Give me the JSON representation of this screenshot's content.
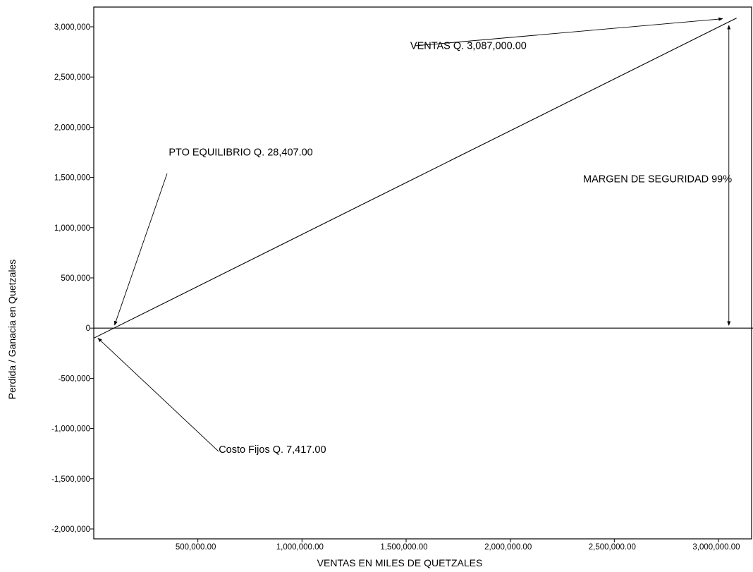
{
  "chart_data": {
    "type": "line",
    "title": "",
    "xlabel": "VENTAS EN MILES DE QUETZALES",
    "ylabel": "Perdida / Ganacia en Quetzales",
    "xlim": [
      0,
      3200000
    ],
    "ylim": [
      -2000000,
      3000000
    ],
    "x_ticks": [
      500000,
      1000000,
      1500000,
      2000000,
      2500000,
      3000000
    ],
    "x_tick_labels": [
      "500,000.00",
      "1,000,000.00",
      "1,500,000.00",
      "2,000,000.00",
      "2,500,000.00",
      "3,000,000.00"
    ],
    "y_ticks": [
      3000000,
      2500000,
      2000000,
      1500000,
      1000000,
      500000,
      0,
      -500000,
      -1000000,
      -1500000,
      -2000000
    ],
    "y_tick_labels": [
      "3,000,000",
      "2,500,000",
      "2,000,000",
      "1,500,000",
      "1,000,000",
      "500,000",
      "0",
      "-500,000",
      "-1,000,000",
      "-1,500,000",
      "-2,000,000"
    ],
    "grid": false,
    "legend": "none",
    "series": [
      {
        "values": [
          [
            0,
            -100000
          ],
          [
            3087000,
            3087000
          ]
        ]
      },
      {
        "values": [
          [
            0,
            0
          ],
          [
            3200000,
            0
          ]
        ]
      }
    ],
    "annotations": [
      {
        "text": "VENTAS Q. 3,087,000.00",
        "label_at": [
          1520000,
          2780000
        ],
        "arrow_to": [
          3020000,
          3080000
        ]
      },
      {
        "text": "PTO EQUILIBRIO Q. 28,407.00",
        "label_at": [
          360000,
          1720000
        ],
        "arrow_to": [
          100000,
          30000
        ]
      },
      {
        "text": "MARGEN DE SEGURIDAD  99%",
        "label_at": [
          2350000,
          1450000
        ]
      },
      {
        "text": "Costo  Fijos Q. 7,417.00",
        "label_at": [
          600000,
          -1240000
        ],
        "arrow_to": [
          20000,
          -100000
        ]
      }
    ],
    "margin_arrow": {
      "x": 3050000,
      "from": 0,
      "to": 3000000
    }
  }
}
